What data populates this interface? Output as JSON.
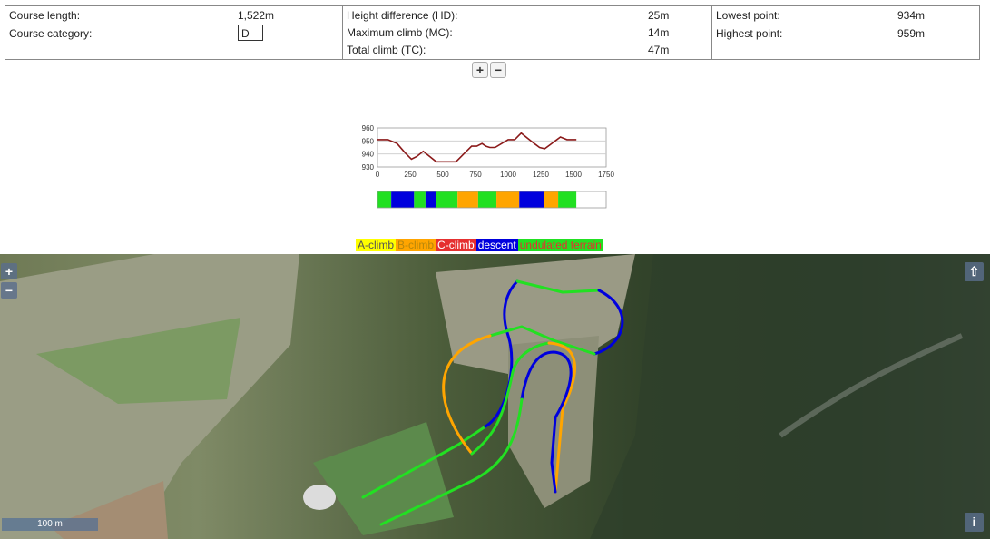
{
  "stats": {
    "course_length_label": "Course length:",
    "course_length_value": "1,522m",
    "course_category_label": "Course category:",
    "course_category_value": "D",
    "height_diff_label": "Height difference (HD):",
    "height_diff_value": "25m",
    "max_climb_label": "Maximum climb (MC):",
    "max_climb_value": "14m",
    "total_climb_label": "Total climb (TC):",
    "total_climb_value": "47m",
    "lowest_label": "Lowest point:",
    "lowest_value": "934m",
    "highest_label": "Highest point:",
    "highest_value": "959m"
  },
  "zoom": {
    "plus": "+",
    "minus": "−"
  },
  "chart_data": {
    "type": "line",
    "title": "",
    "xlabel": "",
    "ylabel": "",
    "xlim": [
      0,
      1750
    ],
    "ylim": [
      930,
      960
    ],
    "x_ticks": [
      "0",
      "250",
      "500",
      "750",
      "1000",
      "1250",
      "1500",
      "1750"
    ],
    "y_ticks": [
      "960",
      "950",
      "940",
      "930"
    ],
    "grid": true,
    "line_color": "#8b1a1a",
    "x": [
      0,
      80,
      150,
      210,
      260,
      300,
      350,
      400,
      450,
      490,
      520,
      560,
      600,
      660,
      720,
      760,
      800,
      830,
      860,
      900,
      950,
      1000,
      1050,
      1080,
      1100,
      1150,
      1200,
      1240,
      1280,
      1320,
      1360,
      1400,
      1450,
      1522
    ],
    "y": [
      951,
      951,
      948,
      941,
      936,
      938,
      942,
      938,
      934,
      934,
      934,
      934,
      934,
      940,
      946,
      946,
      948,
      946,
      945,
      945,
      948,
      951,
      951,
      954,
      956,
      952,
      948,
      945,
      944,
      947,
      950,
      953,
      951,
      951
    ]
  },
  "terrain_bar": {
    "colors": {
      "climb_a": "#ffff00",
      "climb_b": "#ffa500",
      "climb_c": "#e53030",
      "descent": "#0000dd",
      "undulated": "#22e022"
    },
    "segments": [
      {
        "type": "undulated",
        "end": 0.06
      },
      {
        "type": "descent",
        "end": 0.16
      },
      {
        "type": "undulated",
        "end": 0.21
      },
      {
        "type": "descent",
        "end": 0.255
      },
      {
        "type": "undulated",
        "end": 0.35
      },
      {
        "type": "climb_b",
        "end": 0.44
      },
      {
        "type": "undulated",
        "end": 0.52
      },
      {
        "type": "climb_b",
        "end": 0.62
      },
      {
        "type": "descent",
        "end": 0.73
      },
      {
        "type": "climb_b",
        "end": 0.79
      },
      {
        "type": "undulated",
        "end": 0.87
      },
      {
        "type": "none",
        "end": 1.0
      }
    ]
  },
  "legend": {
    "a_climb": "A-climb",
    "b_climb": "B-climb",
    "c_climb": "C-climb",
    "descent": "descent",
    "undulated": "undulated terrain"
  },
  "map": {
    "zoom_in": "+",
    "zoom_out": "−",
    "scale_label": "100 m",
    "fullscreen_icon": "⇧",
    "info_icon": "i"
  }
}
